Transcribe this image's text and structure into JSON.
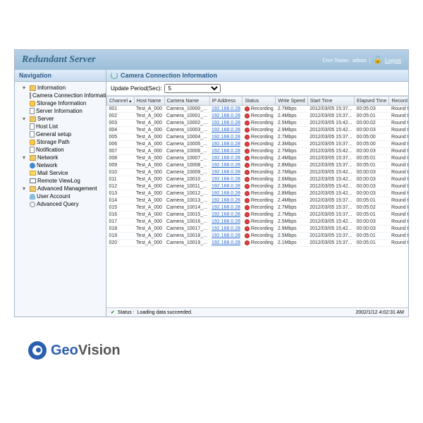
{
  "header": {
    "title": "Redundant Server",
    "user_label": "User Name:",
    "user_name": "admin",
    "logout": "Logout"
  },
  "nav": {
    "title": "Navigation",
    "groups": [
      {
        "label": "Information",
        "icon": "folder",
        "children": [
          {
            "label": "Camera Connection Information",
            "icon": "doc"
          },
          {
            "label": "Storage Information",
            "icon": "db"
          },
          {
            "label": "Server Information",
            "icon": "doc"
          }
        ]
      },
      {
        "label": "Server",
        "icon": "folder",
        "children": [
          {
            "label": "Host List",
            "icon": "doc"
          },
          {
            "label": "General setup",
            "icon": "doc"
          },
          {
            "label": "Storage Path",
            "icon": "db"
          },
          {
            "label": "Notification",
            "icon": "doc"
          }
        ]
      },
      {
        "label": "Network",
        "icon": "folder",
        "children": [
          {
            "label": "Network",
            "icon": "net"
          },
          {
            "label": "Mail Service",
            "icon": "mail"
          },
          {
            "label": "Remote ViewLog",
            "icon": "mon"
          }
        ]
      },
      {
        "label": "Advanced Management",
        "icon": "folder",
        "children": [
          {
            "label": "User Account",
            "icon": "user"
          },
          {
            "label": "Advanced Query",
            "icon": "search"
          }
        ]
      }
    ]
  },
  "panel": {
    "title": "Camera Connection Information",
    "update_label": "Update Period(Sec):",
    "update_value": "5"
  },
  "table": {
    "columns": [
      "Channel",
      "Host Name",
      "Camera Name",
      "IP Address",
      "Status",
      "Write Speed",
      "Start Time",
      "Elapsed Time",
      "Record Policy"
    ],
    "status_label": "Recording",
    "policy": "Round the Clock",
    "rows": [
      {
        "ch": "001",
        "host": "Test_A_000",
        "cam": "Camera_10000_...",
        "ip": "192.168.0.28",
        "speed": "2.7Mbps",
        "start": "2012/03/05 15:37...",
        "elapsed": "00:05:03"
      },
      {
        "ch": "002",
        "host": "Test_A_000",
        "cam": "Camera_10001_...",
        "ip": "192.168.0.28",
        "speed": "2.4Mbps",
        "start": "2012/03/05 15:37...",
        "elapsed": "00:05:01"
      },
      {
        "ch": "003",
        "host": "Test_A_000",
        "cam": "Camera_10002_...",
        "ip": "192.168.0.28",
        "speed": "2.5Mbps",
        "start": "2012/03/05 15:42...",
        "elapsed": "00:00:02"
      },
      {
        "ch": "004",
        "host": "Test_A_000",
        "cam": "Camera_10003_...",
        "ip": "192.168.0.28",
        "speed": "2.9Mbps",
        "start": "2012/03/05 15:42...",
        "elapsed": "00:00:03"
      },
      {
        "ch": "005",
        "host": "Test_A_000",
        "cam": "Camera_10004_...",
        "ip": "192.168.0.28",
        "speed": "2.7Mbps",
        "start": "2012/03/05 15:37...",
        "elapsed": "00:05:00"
      },
      {
        "ch": "006",
        "host": "Test_A_000",
        "cam": "Camera_10005_...",
        "ip": "192.168.0.28",
        "speed": "2.3Mbps",
        "start": "2012/03/05 15:37...",
        "elapsed": "00:05:00"
      },
      {
        "ch": "007",
        "host": "Test_A_000",
        "cam": "Camera_10006_...",
        "ip": "192.168.0.28",
        "speed": "2.7Mbps",
        "start": "2012/03/05 15:42...",
        "elapsed": "00:00:03"
      },
      {
        "ch": "008",
        "host": "Test_A_000",
        "cam": "Camera_10007_...",
        "ip": "192.168.0.28",
        "speed": "2.4Mbps",
        "start": "2012/03/05 15:37...",
        "elapsed": "00:05:01"
      },
      {
        "ch": "009",
        "host": "Test_A_000",
        "cam": "Camera_10008_...",
        "ip": "192.168.0.28",
        "speed": "2.8Mbps",
        "start": "2012/03/05 15:37...",
        "elapsed": "00:05:01"
      },
      {
        "ch": "010",
        "host": "Test_A_000",
        "cam": "Camera_10009_...",
        "ip": "192.168.0.28",
        "speed": "2.7Mbps",
        "start": "2012/03/05 15:42...",
        "elapsed": "00:00:03"
      },
      {
        "ch": "011",
        "host": "Test_A_000",
        "cam": "Camera_10010_...",
        "ip": "192.168.0.28",
        "speed": "2.6Mbps",
        "start": "2012/03/05 15:42...",
        "elapsed": "00:00:03"
      },
      {
        "ch": "012",
        "host": "Test_A_000",
        "cam": "Camera_10011_...",
        "ip": "192.168.0.28",
        "speed": "2.3Mbps",
        "start": "2012/03/05 15:42...",
        "elapsed": "00:00:03"
      },
      {
        "ch": "013",
        "host": "Test_A_000",
        "cam": "Camera_10012_...",
        "ip": "192.168.0.28",
        "speed": "2.8Mbps",
        "start": "2012/03/05 15:42...",
        "elapsed": "00:00:03"
      },
      {
        "ch": "014",
        "host": "Test_A_000",
        "cam": "Camera_10013_...",
        "ip": "192.168.0.28",
        "speed": "2.4Mbps",
        "start": "2012/03/05 15:37...",
        "elapsed": "00:05:01"
      },
      {
        "ch": "015",
        "host": "Test_A_000",
        "cam": "Camera_10014_...",
        "ip": "192.168.0.28",
        "speed": "2.7Mbps",
        "start": "2012/03/05 15:37...",
        "elapsed": "00:05:02"
      },
      {
        "ch": "016",
        "host": "Test_A_000",
        "cam": "Camera_10015_...",
        "ip": "192.168.0.28",
        "speed": "2.7Mbps",
        "start": "2012/03/05 15:37...",
        "elapsed": "00:05:01"
      },
      {
        "ch": "017",
        "host": "Test_A_000",
        "cam": "Camera_10016_...",
        "ip": "192.168.0.28",
        "speed": "2.5Mbps",
        "start": "2012/03/05 15:42...",
        "elapsed": "00:00:03"
      },
      {
        "ch": "018",
        "host": "Test_A_000",
        "cam": "Camera_10017_...",
        "ip": "192.168.0.28",
        "speed": "2.9Mbps",
        "start": "2012/03/05 15:42...",
        "elapsed": "00:00:03"
      },
      {
        "ch": "019",
        "host": "Test_A_000",
        "cam": "Camera_10018_...",
        "ip": "192.168.0.28",
        "speed": "2.5Mbps",
        "start": "2012/03/05 15:37...",
        "elapsed": "00:05:01"
      },
      {
        "ch": "020",
        "host": "Test_A_000",
        "cam": "Camera_10019_...",
        "ip": "192.168.0.28",
        "speed": "2.1Mbps",
        "start": "2012/03/05 15:37...",
        "elapsed": "00:05:01"
      }
    ]
  },
  "status": {
    "label": "Status :",
    "text": "Loading data succeeded.",
    "time": "2002/1/12 4:02:31 AM"
  },
  "logo": {
    "geo": "Geo",
    "vision": "Vision"
  }
}
